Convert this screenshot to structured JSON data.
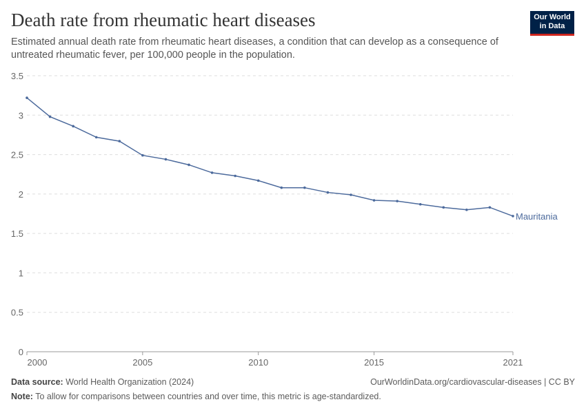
{
  "header": {
    "title": "Death rate from rheumatic heart diseases",
    "subtitle": "Estimated annual death rate from rheumatic heart diseases, a condition that can develop as a consequence of untreated rheumatic fever, per 100,000 people in the population.",
    "logo": "Our World in Data"
  },
  "footer": {
    "source_label": "Data source:",
    "source": "World Health Organization (2024)",
    "url": "OurWorldinData.org/cardiovascular-diseases | CC BY",
    "note_label": "Note:",
    "note": "To allow for comparisons between countries and over time, this metric is age-standardized."
  },
  "chart_data": {
    "type": "line",
    "title": "Death rate from rheumatic heart diseases",
    "xlabel": "",
    "ylabel": "",
    "xlim": [
      2000,
      2021
    ],
    "ylim": [
      0,
      3.5
    ],
    "grid": true,
    "x_ticks": [
      "2000",
      "2005",
      "2010",
      "2015",
      "2021"
    ],
    "y_ticks": [
      "0",
      "0.5",
      "1",
      "1.5",
      "2",
      "2.5",
      "3",
      "3.5"
    ],
    "x": [
      2000,
      2001,
      2002,
      2003,
      2004,
      2005,
      2006,
      2007,
      2008,
      2009,
      2010,
      2011,
      2012,
      2013,
      2014,
      2015,
      2016,
      2017,
      2018,
      2019,
      2020,
      2021
    ],
    "series": [
      {
        "name": "Mauritania",
        "color": "#4c6a9c",
        "values": [
          3.22,
          2.98,
          2.86,
          2.72,
          2.67,
          2.49,
          2.44,
          2.37,
          2.27,
          2.23,
          2.17,
          2.08,
          2.08,
          2.02,
          1.99,
          1.92,
          1.91,
          1.87,
          1.83,
          1.8,
          1.83,
          1.72
        ]
      }
    ]
  }
}
